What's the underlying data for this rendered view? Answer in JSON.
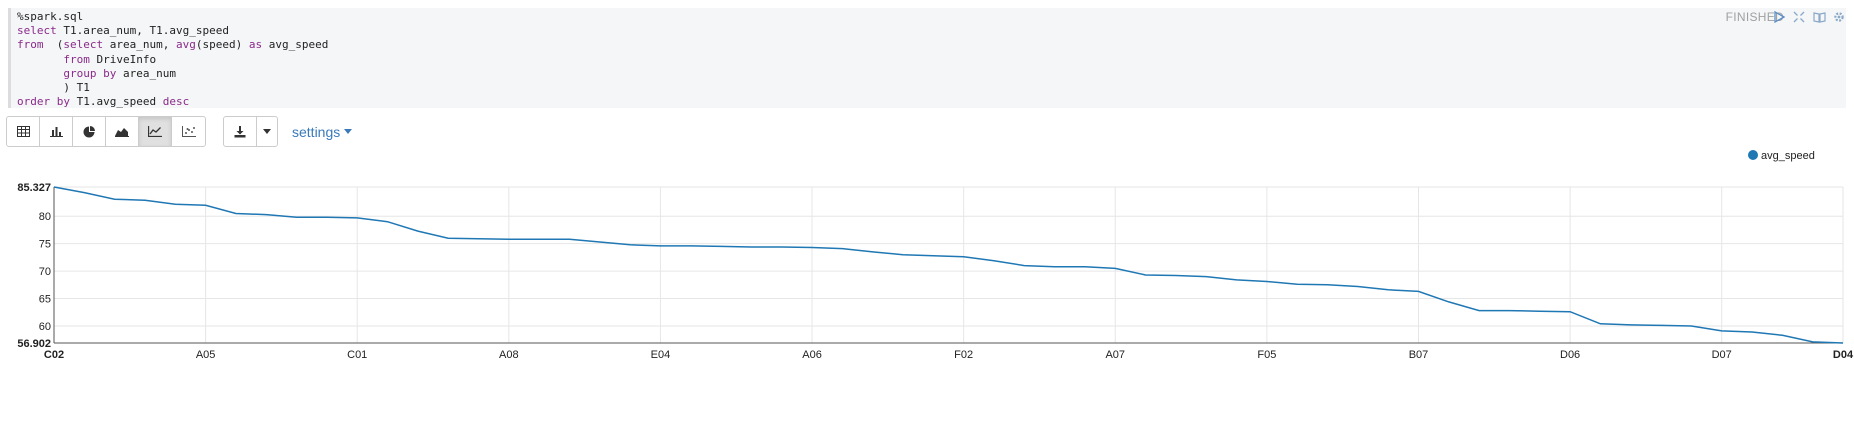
{
  "paragraph": {
    "code_lines": [
      [
        {
          "t": "%spark.sql",
          "k": false
        }
      ],
      [
        {
          "t": "select",
          "k": true
        },
        {
          "t": " T1.area_num, T1.avg_speed",
          "k": false
        }
      ],
      [
        {
          "t": "from",
          "k": true
        },
        {
          "t": "  (",
          "k": false
        },
        {
          "t": "select",
          "k": true
        },
        {
          "t": " area_num, ",
          "k": false
        },
        {
          "t": "avg",
          "k": true
        },
        {
          "t": "(speed) ",
          "k": false
        },
        {
          "t": "as",
          "k": true
        },
        {
          "t": " avg_speed",
          "k": false
        }
      ],
      [
        {
          "t": "       ",
          "k": false
        },
        {
          "t": "from",
          "k": true
        },
        {
          "t": " DriveInfo",
          "k": false
        }
      ],
      [
        {
          "t": "       ",
          "k": false
        },
        {
          "t": "group by",
          "k": true
        },
        {
          "t": " area_num",
          "k": false
        }
      ],
      [
        {
          "t": "       ) T1",
          "k": false
        }
      ],
      [
        {
          "t": "order by",
          "k": true
        },
        {
          "t": " T1.avg_speed ",
          "k": false
        },
        {
          "t": "desc",
          "k": true
        }
      ]
    ],
    "status": "FINISHED",
    "settings_label": "settings"
  },
  "toolbar": {
    "viz_buttons": [
      {
        "icon": "table-icon",
        "active": false
      },
      {
        "icon": "bar-chart-icon",
        "active": false
      },
      {
        "icon": "pie-chart-icon",
        "active": false
      },
      {
        "icon": "area-chart-icon",
        "active": false
      },
      {
        "icon": "line-chart-icon",
        "active": true
      },
      {
        "icon": "scatter-chart-icon",
        "active": false
      }
    ]
  },
  "chart_data": {
    "type": "line",
    "series": [
      {
        "name": "avg_speed",
        "color": "#1f77b4",
        "values": [
          85.327,
          84.3,
          83.1,
          82.9,
          82.2,
          82.0,
          80.5,
          80.3,
          79.8,
          79.8,
          79.7,
          79.0,
          77.3,
          76.0,
          75.9,
          75.8,
          75.8,
          75.8,
          75.3,
          74.8,
          74.6,
          74.6,
          74.5,
          74.4,
          74.4,
          74.3,
          74.1,
          73.5,
          73.0,
          72.8,
          72.6,
          71.9,
          71.0,
          70.8,
          70.8,
          70.5,
          69.3,
          69.2,
          69.0,
          68.4,
          68.1,
          67.6,
          67.5,
          67.2,
          66.6,
          66.3,
          64.4,
          62.8,
          62.8,
          62.7,
          62.6,
          60.4,
          60.2,
          60.1,
          60.0,
          59.1,
          58.9,
          58.3,
          57.1,
          56.902
        ]
      }
    ],
    "x_tick_labels": [
      {
        "i": 0,
        "label": "C02",
        "bold": true
      },
      {
        "i": 5,
        "label": "A05",
        "bold": false
      },
      {
        "i": 10,
        "label": "C01",
        "bold": false
      },
      {
        "i": 15,
        "label": "A08",
        "bold": false
      },
      {
        "i": 20,
        "label": "E04",
        "bold": false
      },
      {
        "i": 25,
        "label": "A06",
        "bold": false
      },
      {
        "i": 30,
        "label": "F02",
        "bold": false
      },
      {
        "i": 35,
        "label": "A07",
        "bold": false
      },
      {
        "i": 40,
        "label": "F05",
        "bold": false
      },
      {
        "i": 45,
        "label": "B07",
        "bold": false
      },
      {
        "i": 50,
        "label": "D06",
        "bold": false
      },
      {
        "i": 55,
        "label": "D07",
        "bold": false
      },
      {
        "i": 59,
        "label": "D04",
        "bold": true
      }
    ],
    "y_ticks": [
      {
        "v": 85.327,
        "label": "85.327",
        "bold": true
      },
      {
        "v": 80,
        "label": "80",
        "bold": false
      },
      {
        "v": 75,
        "label": "75",
        "bold": false
      },
      {
        "v": 70,
        "label": "70",
        "bold": false
      },
      {
        "v": 65,
        "label": "65",
        "bold": false
      },
      {
        "v": 60,
        "label": "60",
        "bold": false
      },
      {
        "v": 56.902,
        "label": "56.902",
        "bold": true
      }
    ],
    "ylim": [
      56.902,
      85.327
    ],
    "grid": true,
    "legend_position": "top-right"
  }
}
